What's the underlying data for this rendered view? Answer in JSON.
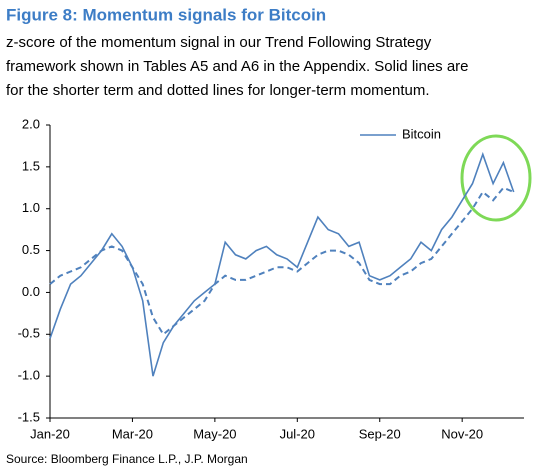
{
  "chart_data": {
    "type": "line",
    "title": "Figure 8: Momentum signals for Bitcoin",
    "subtitle": [
      "z-score of the momentum signal in our Trend Following Strategy",
      "framework shown in Tables A5 and A6 in the Appendix. Solid lines are",
      "for the shorter term and dotted lines for longer-term momentum."
    ],
    "source": "Source: Bloomberg Finance L.P., J.P. Morgan",
    "x": [
      0,
      0.25,
      0.5,
      0.75,
      1,
      1.25,
      1.5,
      1.75,
      2,
      2.25,
      2.5,
      2.75,
      3,
      3.25,
      3.5,
      3.75,
      4,
      4.25,
      4.5,
      4.75,
      5,
      5.25,
      5.5,
      5.75,
      6,
      6.25,
      6.5,
      6.75,
      7,
      7.25,
      7.5,
      7.75,
      8,
      8.25,
      8.5,
      8.75,
      9,
      9.25,
      9.5,
      9.75,
      10,
      10.25,
      10.5,
      10.75,
      11,
      11.25
    ],
    "series": [
      {
        "name": "Bitcoin",
        "color": "#4f81bd",
        "dashed": false,
        "values": [
          -0.55,
          -0.2,
          0.1,
          0.2,
          0.35,
          0.5,
          0.7,
          0.55,
          0.3,
          -0.1,
          -1.0,
          -0.6,
          -0.4,
          -0.25,
          -0.1,
          0.0,
          0.1,
          0.6,
          0.45,
          0.4,
          0.5,
          0.55,
          0.45,
          0.4,
          0.3,
          0.6,
          0.9,
          0.75,
          0.7,
          0.55,
          0.6,
          0.2,
          0.15,
          0.2,
          0.3,
          0.4,
          0.6,
          0.5,
          0.75,
          0.9,
          1.1,
          1.3,
          1.65,
          1.3,
          1.55,
          1.2
        ]
      },
      {
        "color": "#4f81bd",
        "dashed": true,
        "values": [
          0.1,
          0.2,
          0.25,
          0.3,
          0.4,
          0.5,
          0.55,
          0.5,
          0.3,
          0.1,
          -0.3,
          -0.5,
          -0.4,
          -0.3,
          -0.2,
          -0.1,
          0.1,
          0.2,
          0.15,
          0.15,
          0.2,
          0.25,
          0.3,
          0.3,
          0.25,
          0.35,
          0.45,
          0.5,
          0.5,
          0.45,
          0.35,
          0.15,
          0.1,
          0.1,
          0.2,
          0.25,
          0.35,
          0.4,
          0.55,
          0.7,
          0.85,
          1.0,
          1.2,
          1.1,
          1.25,
          1.2
        ]
      }
    ],
    "xlim": [
      0,
      11.5
    ],
    "xticks": [
      {
        "value": 0,
        "label": "Jan-20"
      },
      {
        "value": 2,
        "label": "Mar-20"
      },
      {
        "value": 4,
        "label": "May-20"
      },
      {
        "value": 6,
        "label": "Jul-20"
      },
      {
        "value": 8,
        "label": "Sep-20"
      },
      {
        "value": 10,
        "label": "Nov-20"
      }
    ],
    "ylim": [
      -1.5,
      2
    ],
    "yticks": [
      {
        "value": -1.5,
        "label": "-1.5"
      },
      {
        "value": -1,
        "label": "-1.0"
      },
      {
        "value": -0.5,
        "label": "-0.5"
      },
      {
        "value": 0,
        "label": "0.0"
      },
      {
        "value": 0.5,
        "label": "0.5"
      },
      {
        "value": 1,
        "label": "1.0"
      },
      {
        "value": 1.5,
        "label": "1.5"
      },
      {
        "value": 2,
        "label": "2.0"
      }
    ],
    "grid": false,
    "legend": "top-right"
  }
}
